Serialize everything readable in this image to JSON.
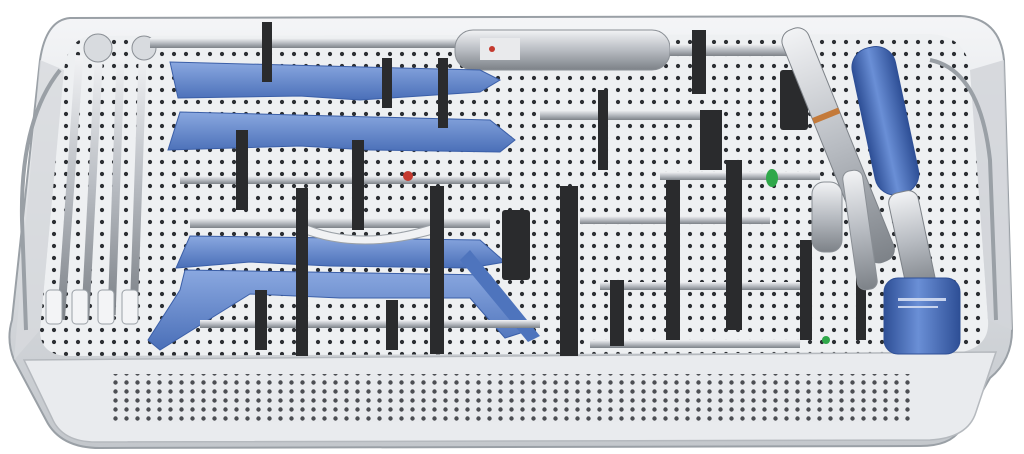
{
  "image": {
    "subject": "surgical-instrument-tray",
    "colors": {
      "background": "#ffffff",
      "tray_outer": "#c9ccd1",
      "tray_wall": "#e6e8eb",
      "tray_floor": "#eef0f2",
      "perforation": "#2c2f33",
      "blue_instrument": "#5b82c9",
      "blue_handle": "#3f66b4",
      "steel": "#b8bcc2",
      "steel_dark": "#6b7076",
      "black_clip": "#2a2b2d",
      "green_tip": "#2fa84a",
      "red_tip": "#c43a2f"
    },
    "icons": [
      "tray-icon",
      "rod-icon",
      "handle-icon",
      "clip-icon"
    ]
  }
}
